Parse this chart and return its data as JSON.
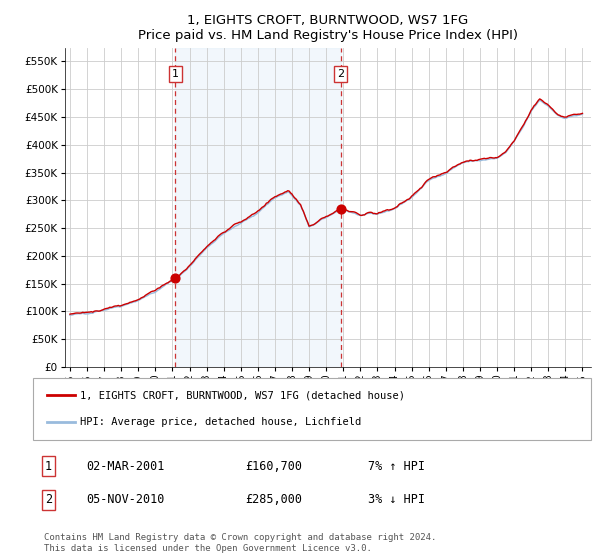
{
  "title": "1, EIGHTS CROFT, BURNTWOOD, WS7 1FG",
  "subtitle": "Price paid vs. HM Land Registry's House Price Index (HPI)",
  "legend_entry1": "1, EIGHTS CROFT, BURNTWOOD, WS7 1FG (detached house)",
  "legend_entry2": "HPI: Average price, detached house, Lichfield",
  "sale1_date": "02-MAR-2001",
  "sale1_price": "£160,700",
  "sale1_hpi": "7% ↑ HPI",
  "sale1_year": 2001.17,
  "sale1_value": 160700,
  "sale2_date": "05-NOV-2010",
  "sale2_price": "£285,000",
  "sale2_hpi": "3% ↓ HPI",
  "sale2_year": 2010.84,
  "sale2_value": 285000,
  "copyright_text": "Contains HM Land Registry data © Crown copyright and database right 2024.\nThis data is licensed under the Open Government Licence v3.0.",
  "line1_color": "#cc0000",
  "line2_color": "#99bbdd",
  "marker_color": "#cc0000",
  "vline_color": "#cc3333",
  "shade_color": "#cce0f5",
  "background_color": "#ffffff",
  "grid_color": "#cccccc",
  "ylim": [
    0,
    575000
  ],
  "xlim_start": 1994.7,
  "xlim_end": 2025.5,
  "yticks": [
    0,
    50000,
    100000,
    150000,
    200000,
    250000,
    300000,
    350000,
    400000,
    450000,
    500000,
    550000
  ],
  "ytick_labels": [
    "£0",
    "£50K",
    "£100K",
    "£150K",
    "£200K",
    "£250K",
    "£300K",
    "£350K",
    "£400K",
    "£450K",
    "£500K",
    "£550K"
  ],
  "xticks": [
    1995,
    1996,
    1997,
    1998,
    1999,
    2000,
    2001,
    2002,
    2003,
    2004,
    2005,
    2006,
    2007,
    2008,
    2009,
    2010,
    2011,
    2012,
    2013,
    2014,
    2015,
    2016,
    2017,
    2018,
    2019,
    2020,
    2021,
    2022,
    2023,
    2024,
    2025
  ]
}
